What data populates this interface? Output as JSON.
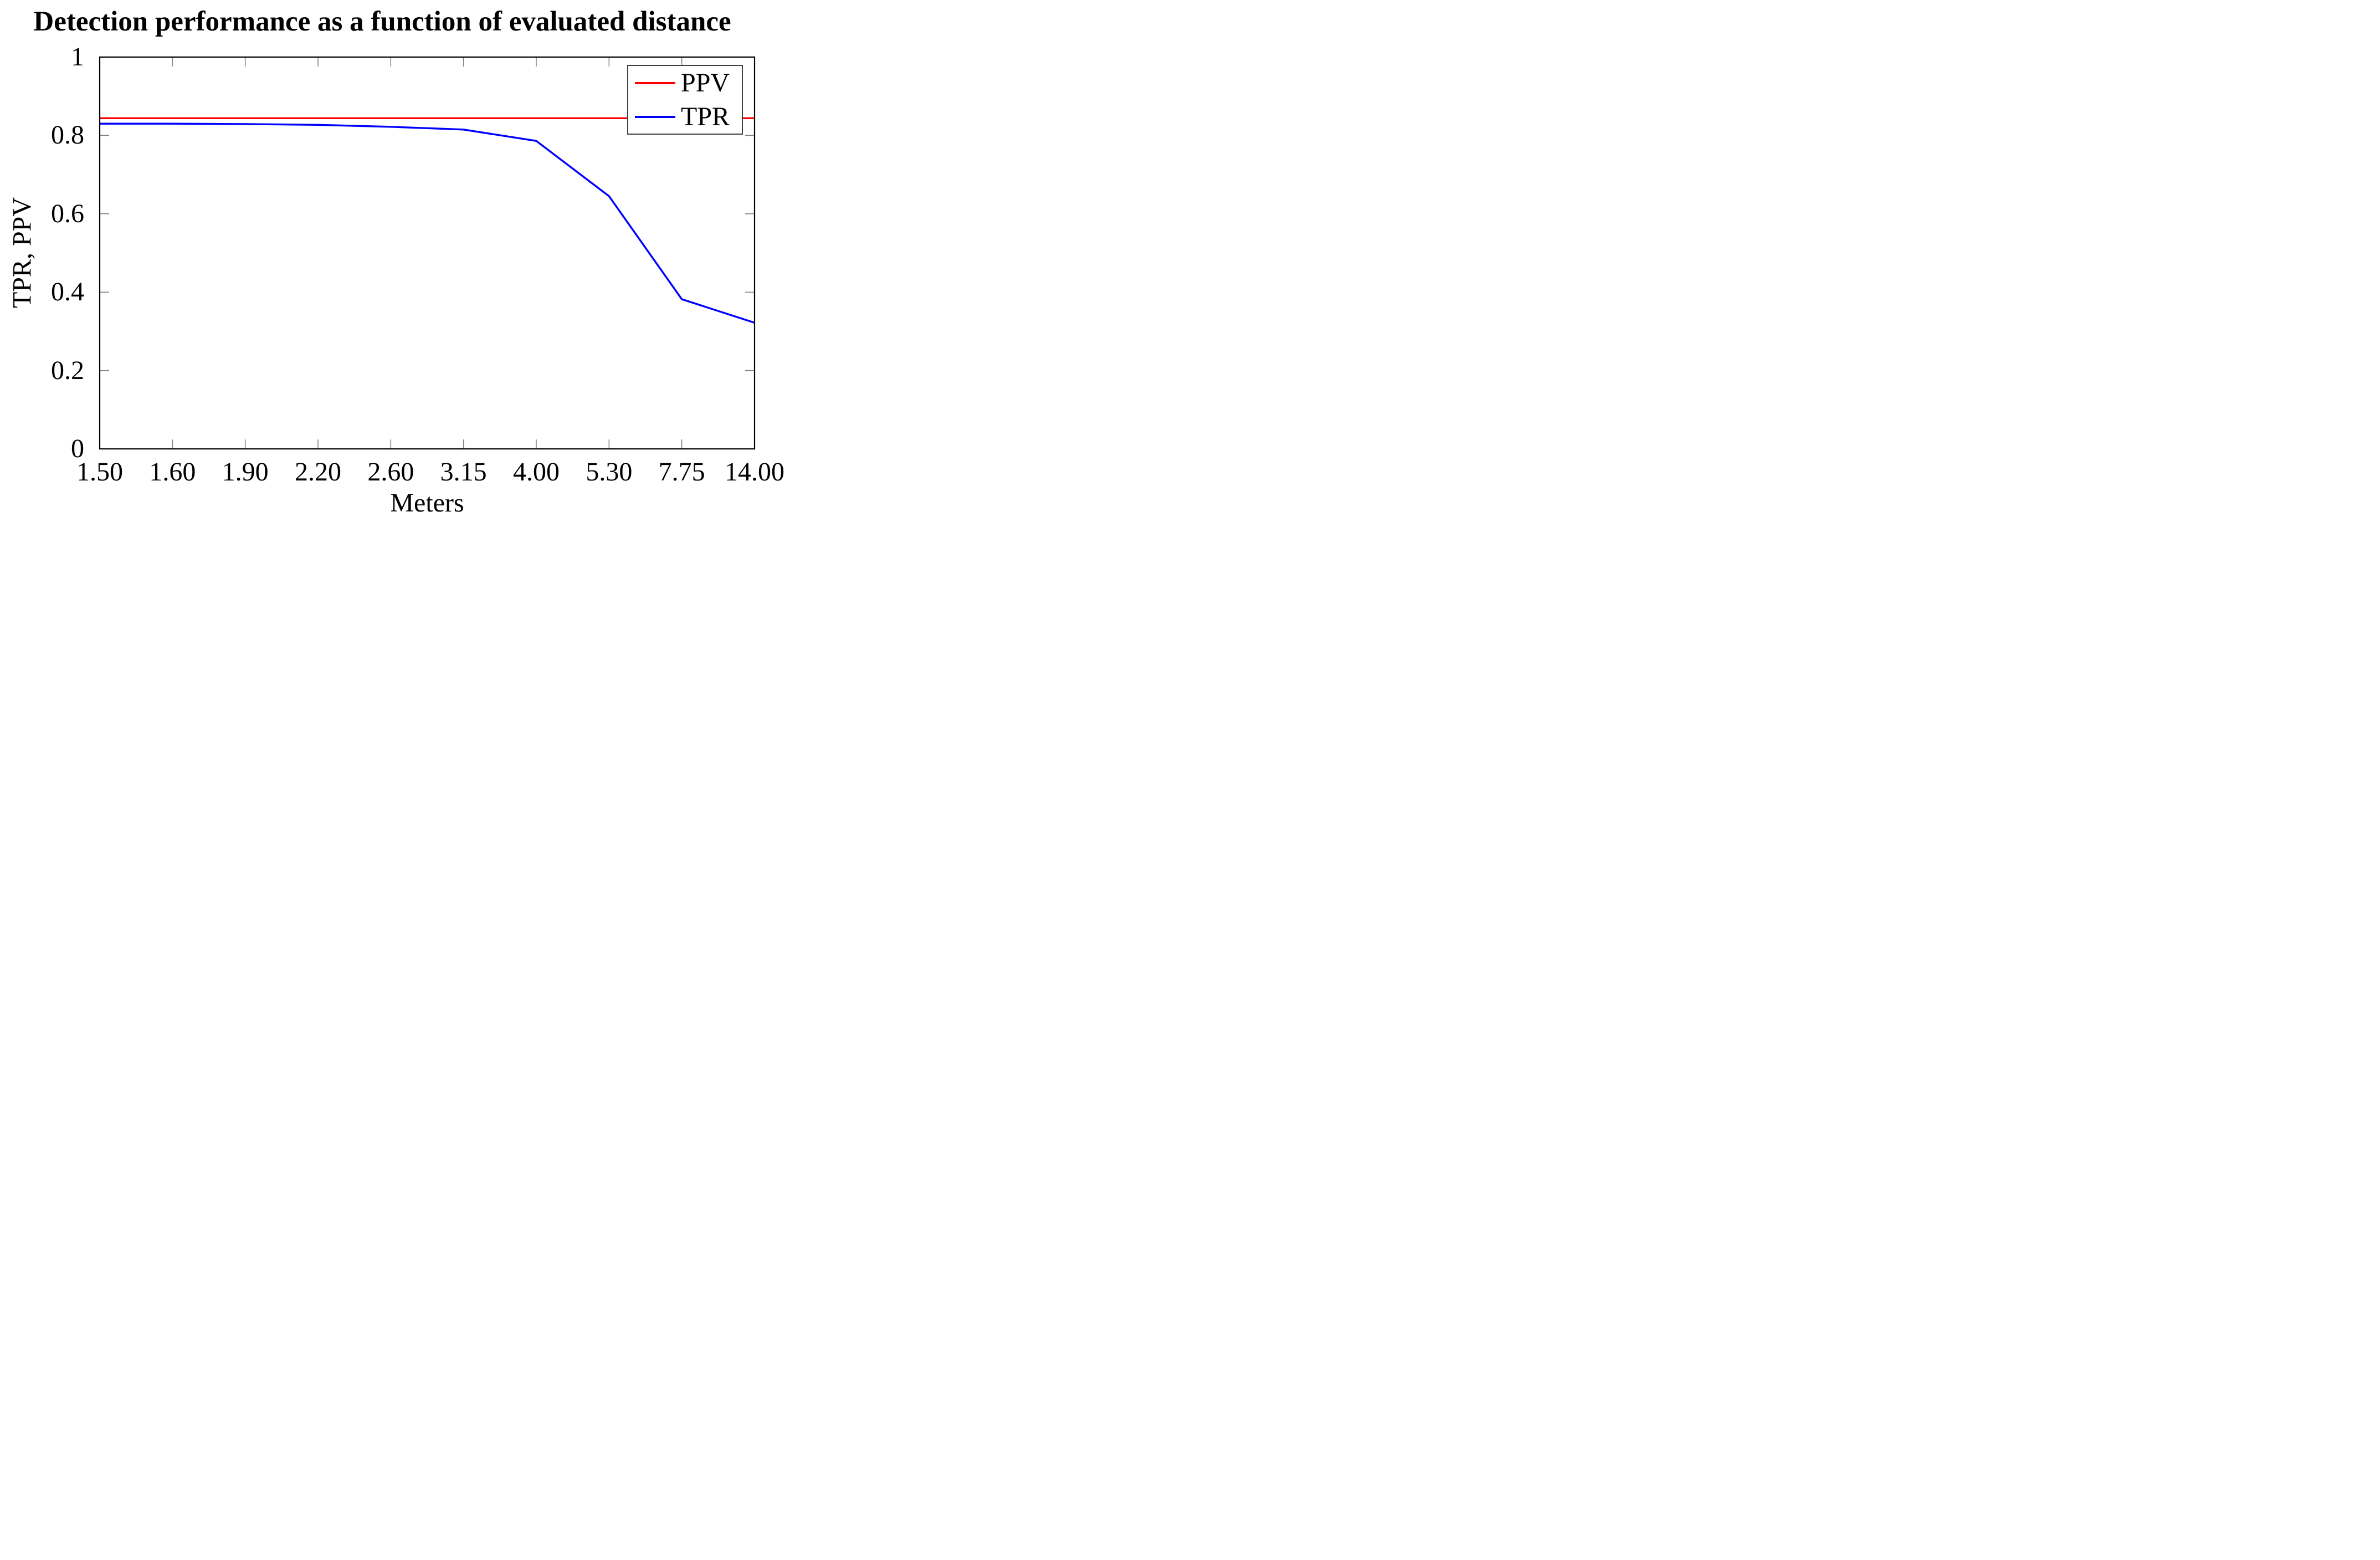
{
  "title": "Detection performance as a function of evaluated distance",
  "axes": {
    "x_label": "Meters",
    "y_label": "TPR, PPV"
  },
  "legend": {
    "position": "top-right",
    "entries": [
      {
        "label": "PPV",
        "color": "#ff0000"
      },
      {
        "label": "TPR",
        "color": "#0000ff"
      }
    ]
  },
  "chart_data": {
    "type": "line",
    "title": "Detection performance as a function of evaluated distance",
    "xlabel": "Meters",
    "ylabel": "TPR, PPV",
    "categories": [
      "1.50",
      "1.60",
      "1.90",
      "2.20",
      "2.60",
      "3.15",
      "4.00",
      "5.30",
      "7.75",
      "14.00"
    ],
    "y_ticks": [
      0,
      0.2,
      0.4,
      0.6,
      0.8,
      1
    ],
    "y_tick_labels": [
      "0",
      "0.2",
      "0.4",
      "0.6",
      "0.8",
      "1"
    ],
    "ylim": [
      0,
      1
    ],
    "grid": false,
    "legend_position": "top-right",
    "tick_color": "#808080",
    "frame_color": "#000000",
    "series": [
      {
        "name": "PPV",
        "color": "#ff0000",
        "values": [
          0.844,
          0.844,
          0.844,
          0.844,
          0.844,
          0.844,
          0.844,
          0.844,
          0.844,
          0.844
        ]
      },
      {
        "name": "TPR",
        "color": "#0000ff",
        "values": [
          0.83,
          0.83,
          0.829,
          0.827,
          0.822,
          0.815,
          0.786,
          0.645,
          0.382,
          0.322
        ]
      }
    ]
  }
}
